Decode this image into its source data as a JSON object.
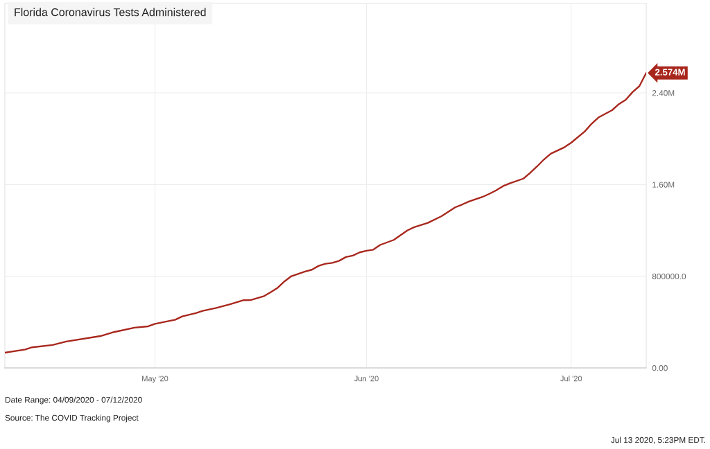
{
  "chart_data": {
    "type": "line",
    "title": "Florida Coronavirus Tests Administered",
    "x": [
      "2020-04-09",
      "2020-04-12",
      "2020-04-13",
      "2020-04-16",
      "2020-04-18",
      "2020-04-23",
      "2020-04-25",
      "2020-04-28",
      "2020-04-30",
      "2020-05-01",
      "2020-05-04",
      "2020-05-05",
      "2020-05-07",
      "2020-05-08",
      "2020-05-10",
      "2020-05-12",
      "2020-05-14",
      "2020-05-15",
      "2020-05-17",
      "2020-05-18",
      "2020-05-19",
      "2020-05-20",
      "2020-05-21",
      "2020-05-23",
      "2020-05-24",
      "2020-05-25",
      "2020-05-26",
      "2020-05-27",
      "2020-05-28",
      "2020-05-29",
      "2020-05-30",
      "2020-05-31",
      "2020-06-01",
      "2020-06-02",
      "2020-06-03",
      "2020-06-05",
      "2020-06-07",
      "2020-06-08",
      "2020-06-10",
      "2020-06-12",
      "2020-06-14",
      "2020-06-15",
      "2020-06-16",
      "2020-06-18",
      "2020-06-19",
      "2020-06-20",
      "2020-06-21",
      "2020-06-22",
      "2020-06-24",
      "2020-06-25",
      "2020-06-26",
      "2020-06-27",
      "2020-06-28",
      "2020-06-30",
      "2020-07-01",
      "2020-07-03",
      "2020-07-04",
      "2020-07-05",
      "2020-07-07",
      "2020-07-08",
      "2020-07-09",
      "2020-07-10",
      "2020-07-11",
      "2020-07-12"
    ],
    "series": [
      {
        "color": "#a8271d",
        "values": [
          133000,
          161000,
          180000,
          200000,
          230000,
          278000,
          313000,
          351000,
          363000,
          385000,
          421000,
          450000,
          478000,
          498000,
          524000,
          555000,
          591000,
          592000,
          627000,
          662000,
          700000,
          756000,
          801000,
          841000,
          857000,
          891000,
          909000,
          917000,
          935000,
          968000,
          980000,
          1008000,
          1022000,
          1032000,
          1073000,
          1117000,
          1200000,
          1228000,
          1266000,
          1324000,
          1401000,
          1425000,
          1452000,
          1492000,
          1519000,
          1549000,
          1586000,
          1610000,
          1652000,
          1702000,
          1758000,
          1818000,
          1869000,
          1925000,
          1965000,
          2064000,
          2131000,
          2185000,
          2249000,
          2302000,
          2340000,
          2407000,
          2459000,
          2574000
        ]
      }
    ],
    "xlim": [
      "2020-04-09",
      "2020-07-12"
    ],
    "xticks": [
      {
        "value": "2020-05-01",
        "label": "May '20"
      },
      {
        "value": "2020-06-01",
        "label": "Jun '20"
      },
      {
        "value": "2020-07-01",
        "label": "Jul '20"
      }
    ],
    "ylim": [
      0,
      3180000
    ],
    "yticks": [
      {
        "value": 0,
        "label": "0.00"
      },
      {
        "value": 800000,
        "label": "800000.0"
      },
      {
        "value": 1600000,
        "label": "1.60M"
      },
      {
        "value": 2400000,
        "label": "2.40M"
      }
    ],
    "grid": true,
    "annotations": [
      {
        "text": "2.574M",
        "x": "2020-07-12",
        "y": 2574000
      },
      "Date Range: 04/09/2020 - 07/12/2020",
      "Source: The COVID Tracking Project",
      "Jul 13 2020, 5:23PM EDT."
    ]
  }
}
